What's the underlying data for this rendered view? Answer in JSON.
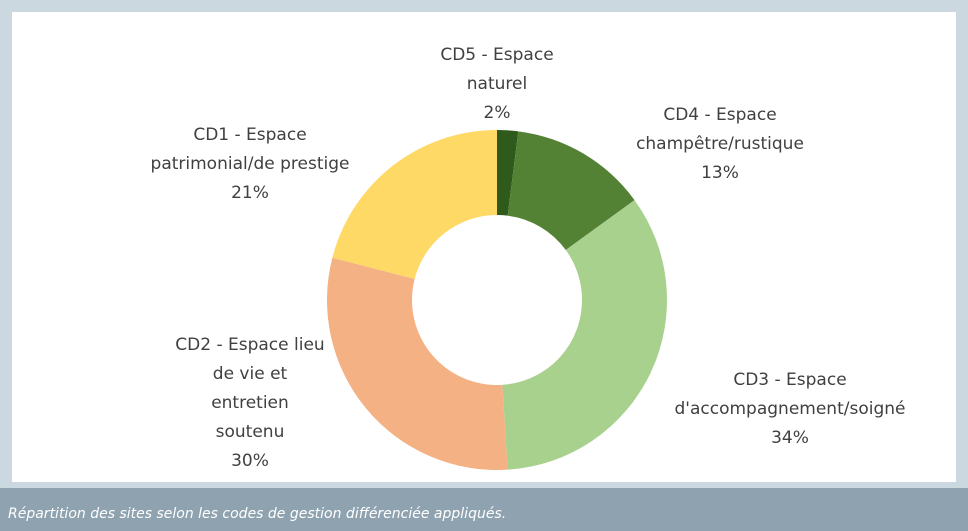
{
  "chart_data": {
    "type": "donut",
    "labels": [
      [
        "CD5 - Espace",
        "naturel"
      ],
      [
        "CD4 - Espace",
        "champêtre/rustique"
      ],
      [
        "CD3 - Espace",
        "d'accompagnement/soigné"
      ],
      [
        "CD2 - Espace lieu",
        "de vie et",
        "entretien",
        "soutenu"
      ],
      [
        "CD1 - Espace",
        "patrimonial/de prestige"
      ]
    ],
    "values": [
      2,
      13,
      34,
      30,
      21
    ],
    "value_labels": [
      "2%",
      "13%",
      "34%",
      "30%",
      "21%"
    ],
    "colors": [
      "#2f5a1c",
      "#548235",
      "#a9d18e",
      "#f4b183",
      "#ffd966"
    ]
  },
  "caption": "Répartition des sites selon les codes de gestion différenciée appliqués."
}
